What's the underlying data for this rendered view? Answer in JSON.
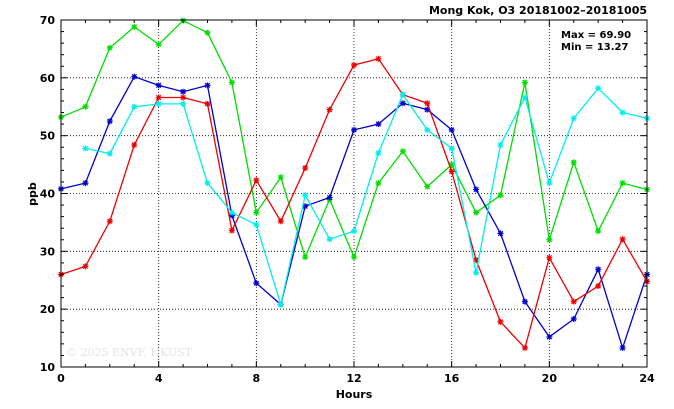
{
  "chart_data": {
    "type": "line",
    "title": "Mong Kok, O3 20181002–20181005",
    "xlabel": "Hours",
    "ylabel": "ppb",
    "xlim": [
      0,
      24
    ],
    "ylim": [
      10,
      70
    ],
    "x_ticks": [
      "0",
      "4",
      "8",
      "12",
      "16",
      "20",
      "24"
    ],
    "y_ticks": [
      "10",
      "20",
      "30",
      "40",
      "50",
      "60",
      "70"
    ],
    "grid": true,
    "x": [
      0,
      1,
      2,
      3,
      4,
      5,
      6,
      7,
      8,
      9,
      10,
      11,
      12,
      13,
      14,
      15,
      16,
      17,
      18,
      19,
      20,
      21,
      22,
      23,
      24
    ],
    "series": [
      {
        "color": "#00dd00",
        "values": [
          53.2,
          55.0,
          65.2,
          68.8,
          65.8,
          69.9,
          67.8,
          59.2,
          36.7,
          42.8,
          29.0,
          39.0,
          29.0,
          41.8,
          47.3,
          41.2,
          45.0,
          36.7,
          39.7,
          59.2,
          32.0,
          45.4,
          33.5,
          41.8,
          40.7
        ]
      },
      {
        "color": "#0000cc",
        "values": [
          40.8,
          41.8,
          52.5,
          60.2,
          58.7,
          57.6,
          58.7,
          36.2,
          24.5,
          20.8,
          37.8,
          39.3,
          51.0,
          52.0,
          55.6,
          54.5,
          51.0,
          40.7,
          33.1,
          21.3,
          15.2,
          18.3,
          26.9,
          13.3,
          26.0
        ]
      },
      {
        "color": "#ee0000",
        "values": [
          26.0,
          27.4,
          35.2,
          48.4,
          56.6,
          56.6,
          55.5,
          33.6,
          42.3,
          35.2,
          44.4,
          54.5,
          62.2,
          63.3,
          57.1,
          55.6,
          43.8,
          28.5,
          17.8,
          13.3,
          28.9,
          21.3,
          24.0,
          32.1,
          24.8
        ]
      },
      {
        "color": "#00eeee",
        "values": [
          null,
          47.8,
          46.9,
          55.0,
          55.5,
          55.5,
          41.8,
          36.7,
          34.6,
          20.8,
          39.7,
          32.1,
          33.5,
          47.0,
          57.1,
          51.0,
          47.8,
          26.3,
          48.4,
          56.6,
          41.8,
          53.0,
          58.2,
          54.0,
          53.0
        ]
      }
    ],
    "annotations": [
      "Max = 69.90",
      "Min = 13.27"
    ],
    "watermark": "© 2025 ENVF, HKUST"
  }
}
